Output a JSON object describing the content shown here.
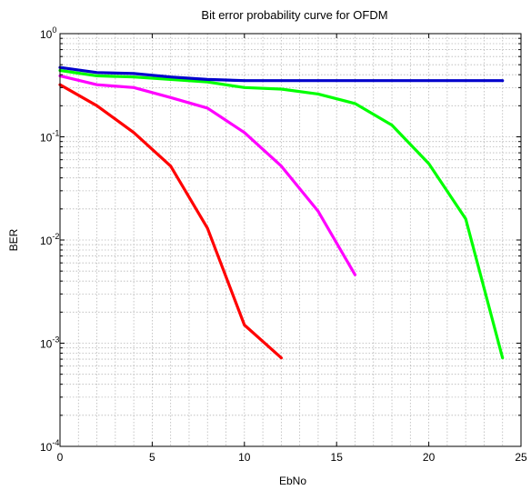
{
  "chart_data": {
    "type": "line",
    "title": "Bit error probability curve for OFDM",
    "xlabel": "EbNo",
    "ylabel": "BER",
    "xlim": [
      0,
      25
    ],
    "ylim": [
      0.0001,
      1
    ],
    "yscale": "log",
    "grid": true,
    "x_ticks": [
      "0",
      "5",
      "10",
      "15",
      "20",
      "25"
    ],
    "y_ticks": [
      {
        "base": "10",
        "exp": "-4"
      },
      {
        "base": "10",
        "exp": "-3"
      },
      {
        "base": "10",
        "exp": "-2"
      },
      {
        "base": "10",
        "exp": "-1"
      },
      {
        "base": "10",
        "exp": "0"
      }
    ],
    "series": [
      {
        "color": "#ff0000",
        "x": [
          0,
          2,
          4,
          6,
          8,
          10,
          12
        ],
        "y": [
          0.32,
          0.2,
          0.11,
          0.052,
          0.013,
          0.0015,
          0.00072
        ]
      },
      {
        "color": "#ff00ff",
        "x": [
          0,
          2,
          4,
          6,
          8,
          10,
          12,
          14,
          16
        ],
        "y": [
          0.39,
          0.32,
          0.3,
          0.24,
          0.19,
          0.11,
          0.052,
          0.019,
          0.0046
        ]
      },
      {
        "color": "#00ff00",
        "x": [
          0,
          2,
          4,
          6,
          8,
          10,
          12,
          14,
          16,
          18,
          20,
          22,
          24
        ],
        "y": [
          0.44,
          0.39,
          0.38,
          0.36,
          0.34,
          0.3,
          0.29,
          0.26,
          0.21,
          0.13,
          0.055,
          0.016,
          0.00072
        ]
      },
      {
        "color": "#0000cc",
        "x": [
          0,
          2,
          4,
          6,
          8,
          10,
          12,
          14,
          16,
          18,
          20,
          22,
          24
        ],
        "y": [
          0.47,
          0.42,
          0.41,
          0.38,
          0.36,
          0.35,
          0.35,
          0.35,
          0.35,
          0.35,
          0.35,
          0.35,
          0.35
        ]
      }
    ]
  }
}
